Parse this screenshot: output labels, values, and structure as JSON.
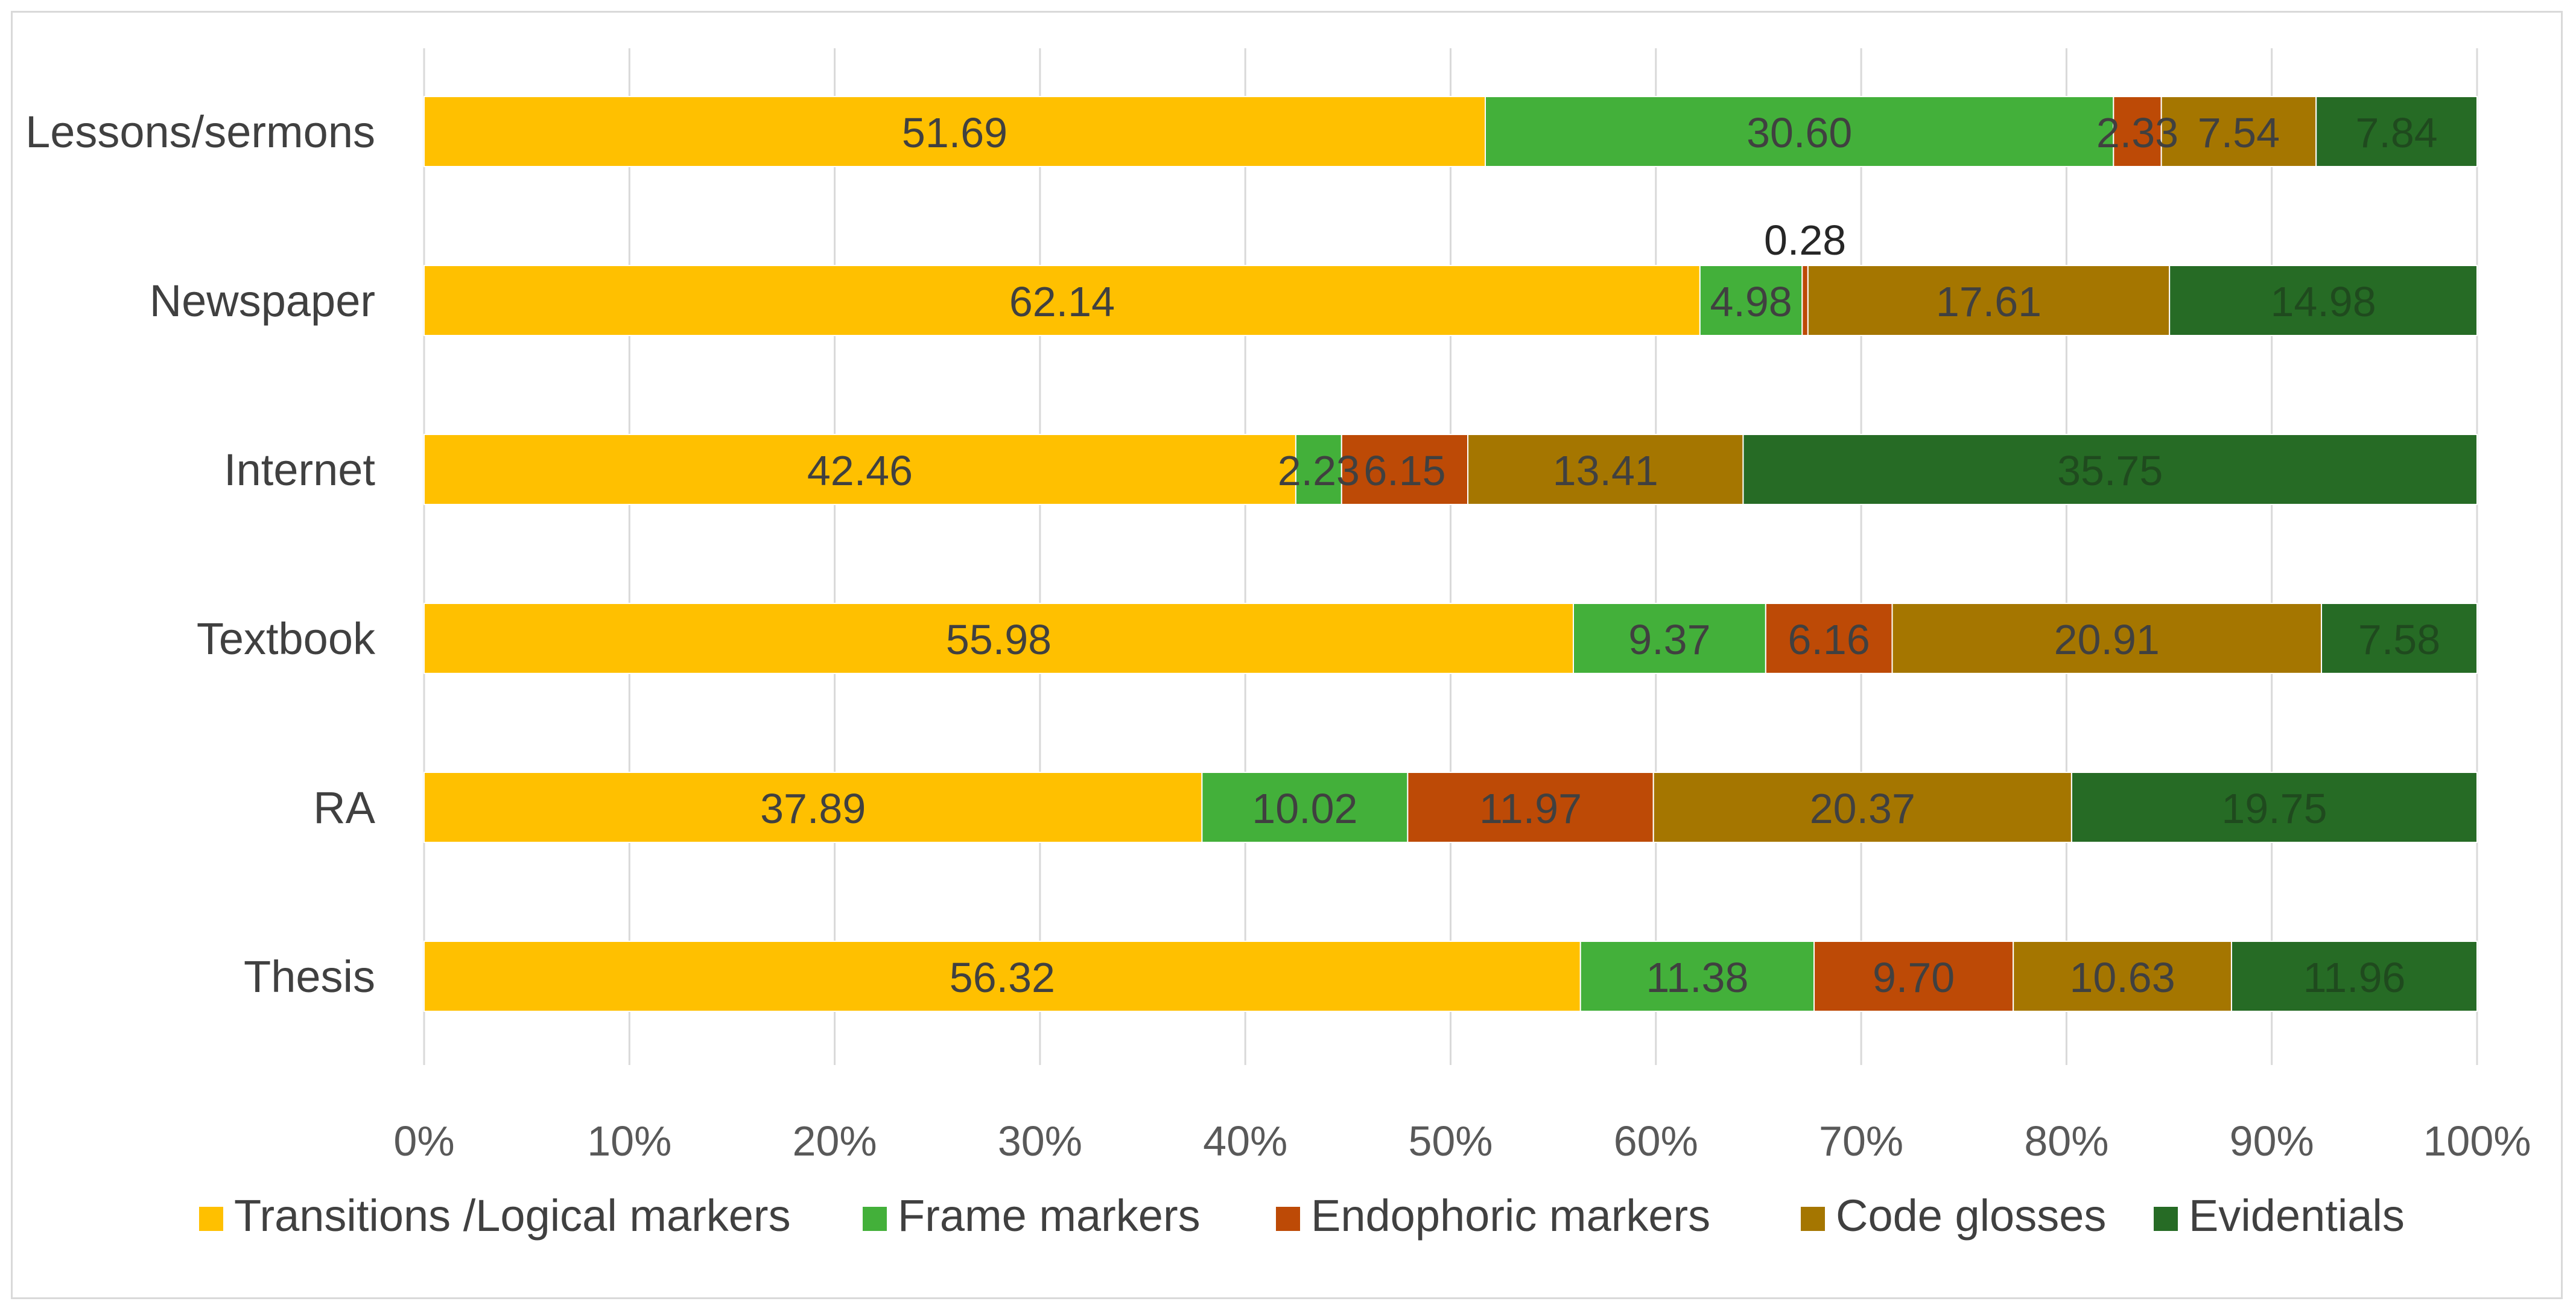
{
  "chart_data": {
    "type": "bar",
    "orientation": "horizontal",
    "stacked": "percent",
    "categories": [
      "Lessons/sermons",
      "Newspaper",
      "Internet",
      "Textbook",
      "RA",
      "Thesis"
    ],
    "series": [
      {
        "name": "Transitions /Logical markers",
        "color": "#FFC000",
        "label_color": "#404040",
        "values": [
          51.69,
          62.14,
          42.46,
          55.98,
          37.89,
          56.32
        ],
        "labels": [
          "51.69",
          "62.14",
          "42.46",
          "55.98",
          "37.89",
          "56.32"
        ]
      },
      {
        "name": "Frame markers",
        "color": "#43B03A",
        "label_color": "#404040",
        "values": [
          30.6,
          4.98,
          2.23,
          9.37,
          10.02,
          11.38
        ],
        "labels": [
          "30.60",
          "4.98",
          "2.23",
          "9.37",
          "10.02",
          "11.38"
        ]
      },
      {
        "name": "Endophoric markers",
        "color": "#BD4A06",
        "label_color": "#404040",
        "values": [
          2.33,
          0.28,
          6.15,
          6.16,
          11.97,
          9.7
        ],
        "labels": [
          "2.33",
          "0.28",
          "6.15",
          "6.16",
          "11.97",
          "9.70"
        ]
      },
      {
        "name": "Code glosses",
        "color": "#A57600",
        "label_color": "#404040",
        "values": [
          7.54,
          17.61,
          13.41,
          20.91,
          20.37,
          10.63
        ],
        "labels": [
          "7.54",
          "17.61",
          "13.41",
          "20.91",
          "20.37",
          "10.63"
        ]
      },
      {
        "name": "Evidentials",
        "color": "#266B25",
        "label_color": "#1f4a1e",
        "values": [
          7.84,
          14.98,
          35.75,
          7.58,
          19.75,
          11.96
        ],
        "labels": [
          "7.84",
          "14.98",
          "35.75",
          "7.58",
          "19.75",
          "11.96"
        ]
      }
    ],
    "x_ticks": [
      "0%",
      "10%",
      "20%",
      "30%",
      "40%",
      "50%",
      "60%",
      "70%",
      "80%",
      "90%",
      "100%"
    ],
    "xlim": [
      0,
      100
    ],
    "grid": true,
    "legend": "bottom",
    "title": "",
    "xlabel": "",
    "ylabel": ""
  }
}
